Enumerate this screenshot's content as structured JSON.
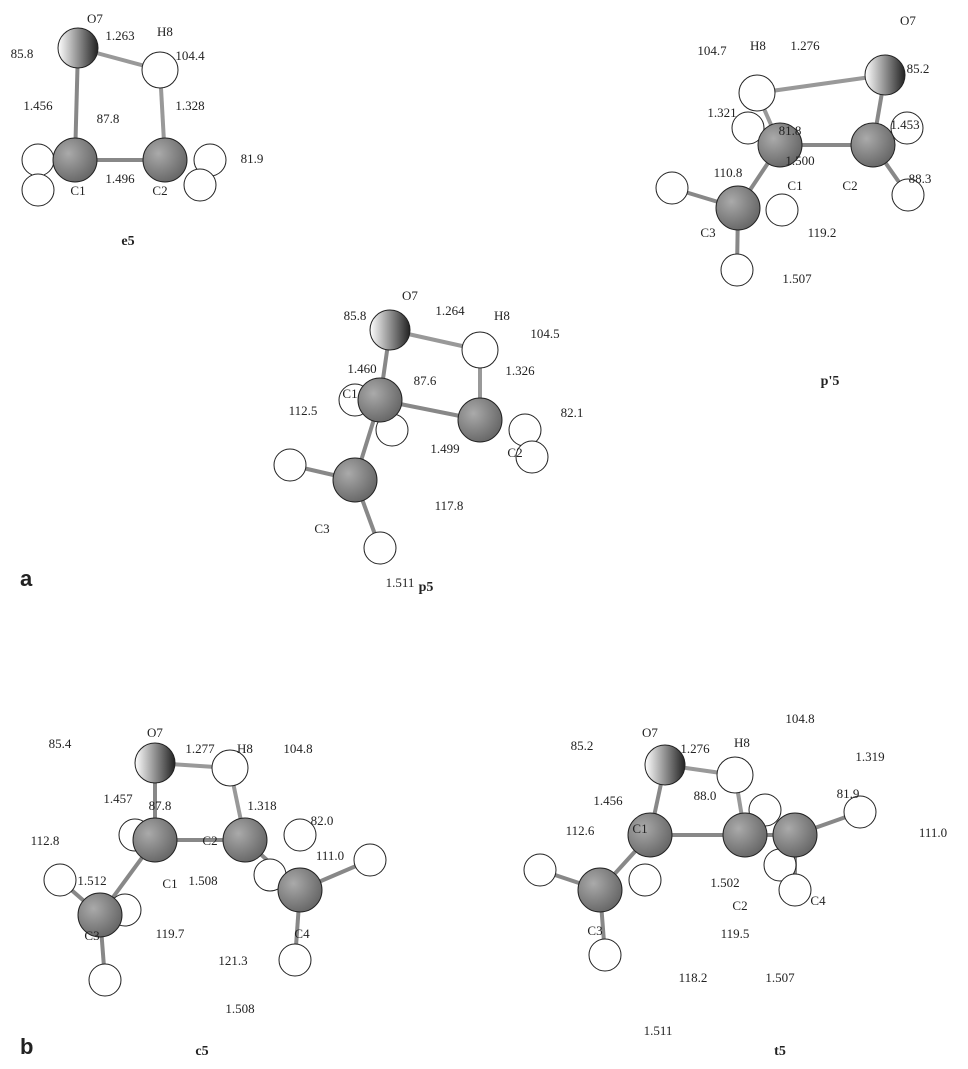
{
  "panels": [
    {
      "label": "a",
      "molecules": [
        {
          "name": "e5",
          "labels": [
            "O7",
            "H8",
            "85.8",
            "1.263",
            "104.4",
            "1.456",
            "87.8",
            "1.328",
            "81.9",
            "C1",
            "1.496",
            "C2"
          ]
        },
        {
          "name": "p5",
          "labels": [
            "O7",
            "1.264",
            "H8",
            "85.8",
            "104.5",
            "1.460",
            "87.6",
            "1.326",
            "C1",
            "112.5",
            "82.1",
            "1.499",
            "C2",
            "C3",
            "117.8",
            "1.511"
          ]
        },
        {
          "name": "p'5",
          "labels": [
            "104.7",
            "H8",
            "1.276",
            "O7",
            "85.2",
            "1.321",
            "1.453",
            "81.8",
            "110.8",
            "1.500",
            "C1",
            "C2",
            "88.3",
            "C3",
            "119.2",
            "1.507"
          ]
        }
      ]
    },
    {
      "label": "b",
      "molecules": [
        {
          "name": "c5",
          "labels": [
            "85.4",
            "O7",
            "1.277",
            "H8",
            "104.8",
            "1.457",
            "87.8",
            "1.318",
            "82.0",
            "112.8",
            "C2",
            "111.0",
            "1.512",
            "1.508",
            "C1",
            "C3",
            "C4",
            "119.7",
            "121.3",
            "1.508"
          ]
        },
        {
          "name": "t5",
          "labels": [
            "85.2",
            "O7",
            "1.276",
            "H8",
            "104.8",
            "1.319",
            "88.0",
            "1.456",
            "C1",
            "81.9",
            "111.0",
            "112.6",
            "1.502",
            "C2",
            "C4",
            "C3",
            "119.5",
            "118.2",
            "1.507",
            "1.511"
          ]
        }
      ]
    }
  ]
}
